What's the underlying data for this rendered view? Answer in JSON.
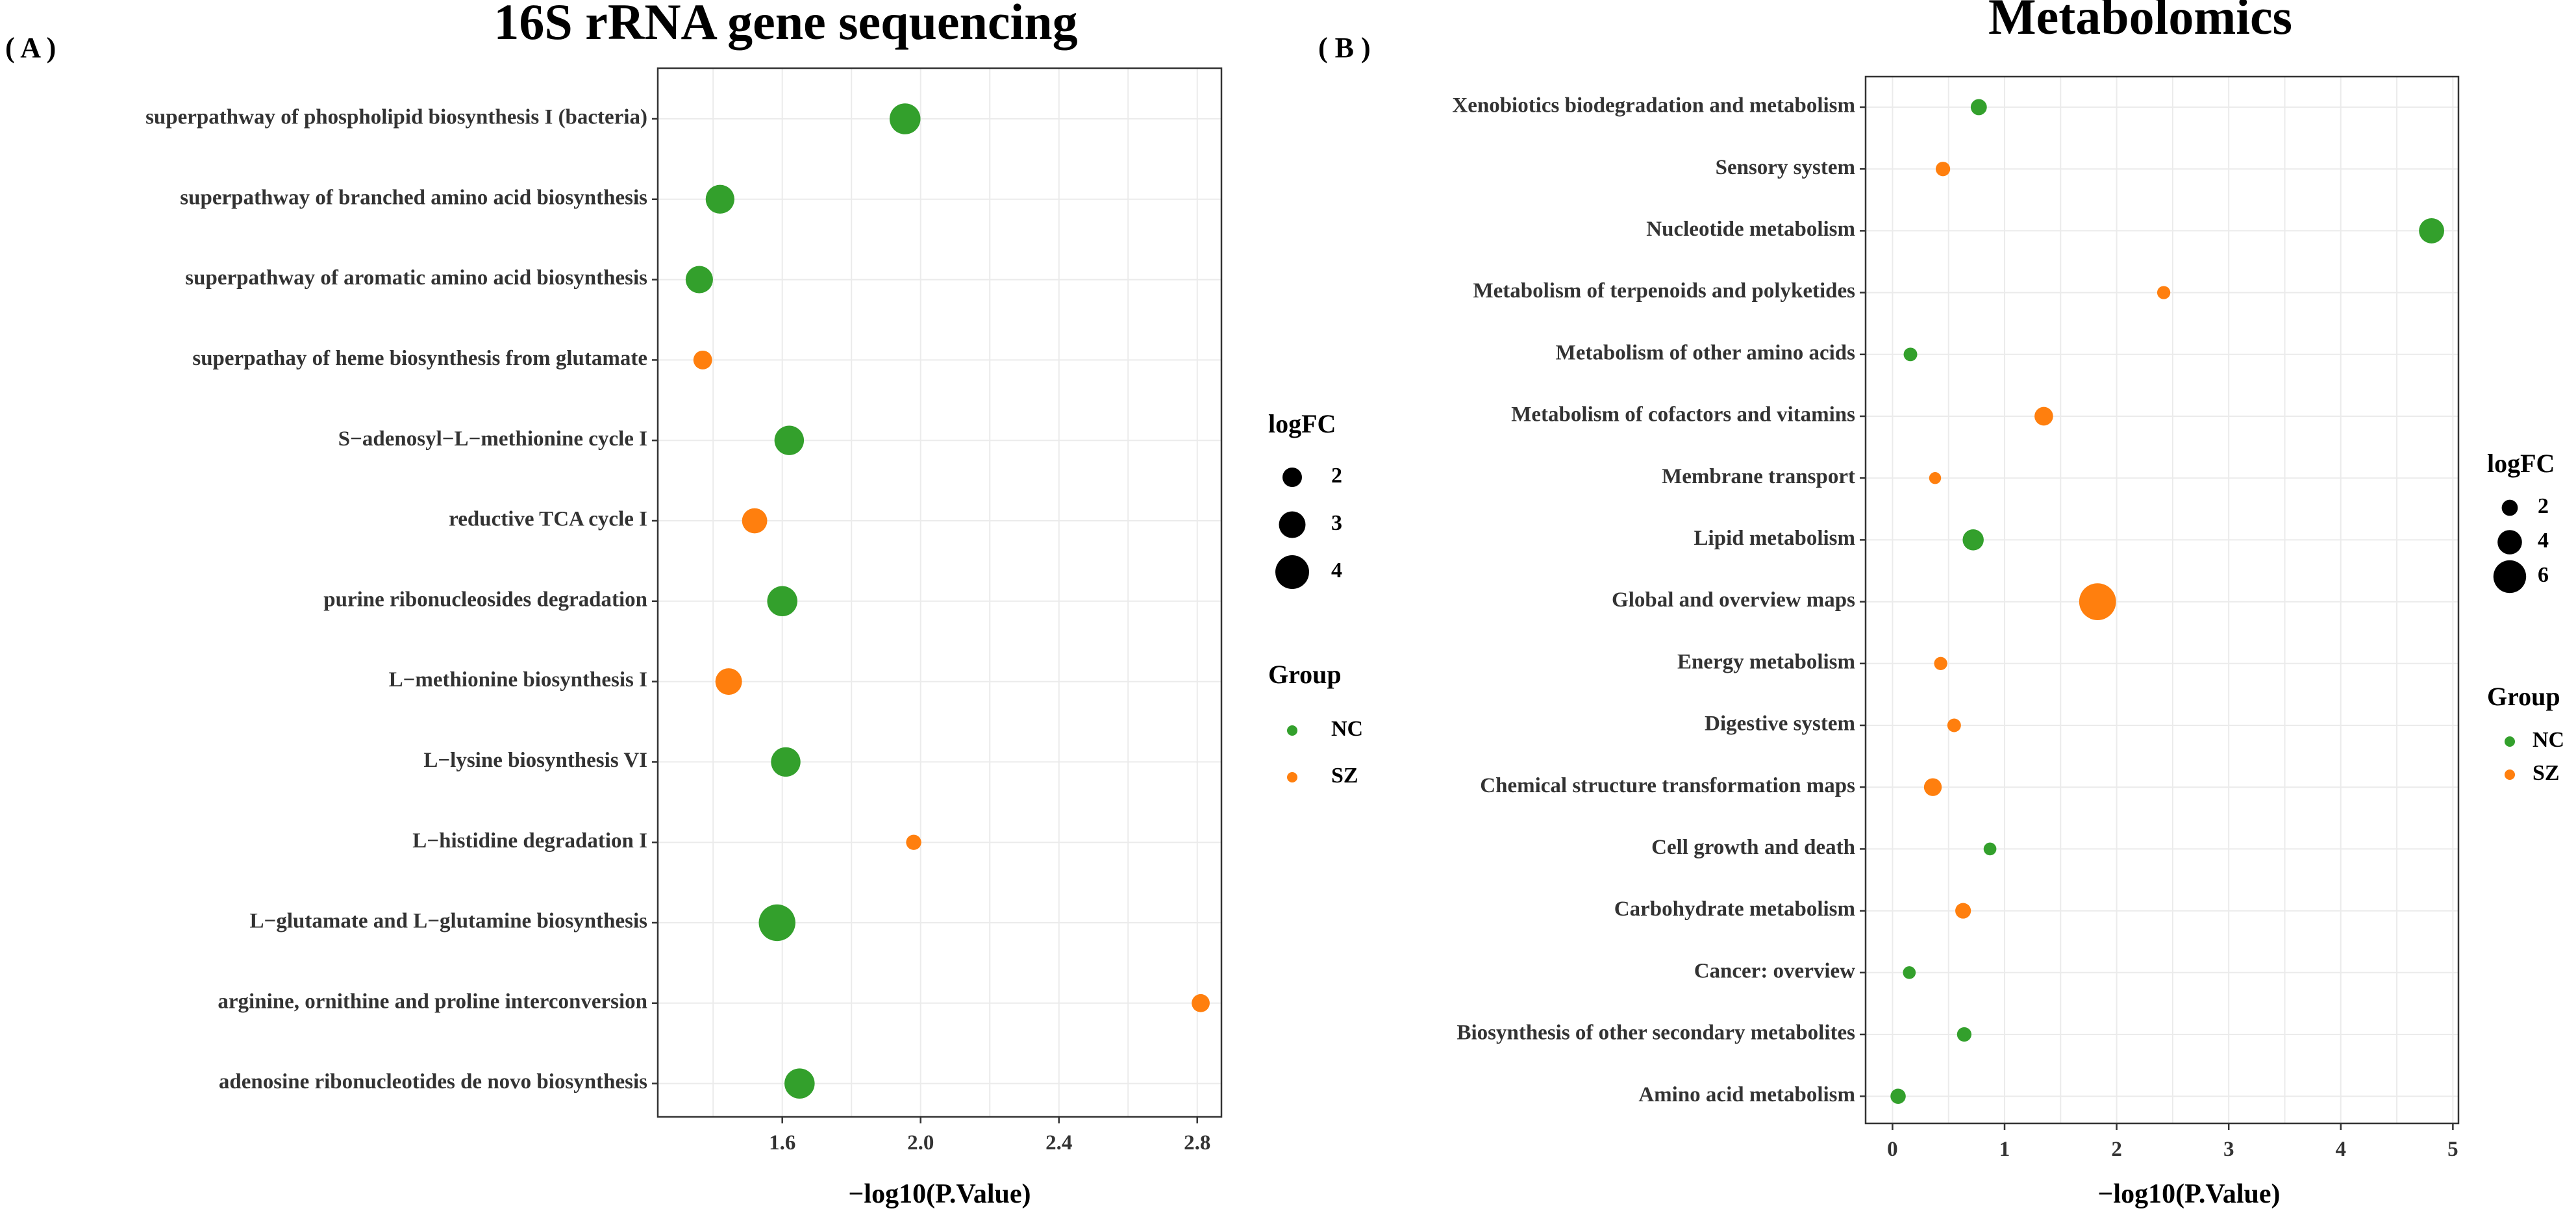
{
  "colors": {
    "NC": "#33a02c",
    "SZ": "#ff7f0e"
  },
  "chart_data": [
    {
      "panel_label": "( A )",
      "title": "16S rRNA gene sequencing",
      "type": "scatter",
      "xlabel": "−log10(P.Value)",
      "xlim": [
        1.24,
        2.87
      ],
      "xticks": [
        1.6,
        2.0,
        2.4,
        2.8
      ],
      "xtick_labels": [
        "1.6",
        "2.0",
        "2.4",
        "2.8"
      ],
      "points": [
        {
          "label": "superpathway of phospholipid biosynthesis I (bacteria)",
          "x": 1.955,
          "logFC": 3.6,
          "group": "NC"
        },
        {
          "label": "superpathway of branched amino acid biosynthesis",
          "x": 1.42,
          "logFC": 3.3,
          "group": "NC"
        },
        {
          "label": "superpathway of aromatic amino acid biosynthesis",
          "x": 1.36,
          "logFC": 3.1,
          "group": "NC"
        },
        {
          "label": "superpathay of heme biosynthesis from glutamate",
          "x": 1.37,
          "logFC": 1.9,
          "group": "SZ"
        },
        {
          "label": "S−adenosyl−L−methionine cycle I",
          "x": 1.62,
          "logFC": 3.4,
          "group": "NC"
        },
        {
          "label": "reductive TCA cycle I",
          "x": 1.52,
          "logFC": 2.8,
          "group": "SZ"
        },
        {
          "label": "purine ribonucleosides degradation",
          "x": 1.6,
          "logFC": 3.5,
          "group": "NC"
        },
        {
          "label": "L−methionine biosynthesis I",
          "x": 1.445,
          "logFC": 3.0,
          "group": "SZ"
        },
        {
          "label": "L−lysine biosynthesis VI",
          "x": 1.61,
          "logFC": 3.4,
          "group": "NC"
        },
        {
          "label": "L−histidine degradation I",
          "x": 1.98,
          "logFC": 1.4,
          "group": "SZ"
        },
        {
          "label": "L−glutamate and L−glutamine biosynthesis",
          "x": 1.585,
          "logFC": 4.4,
          "group": "NC"
        },
        {
          "label": "arginine, ornithine and proline interconversion",
          "x": 2.81,
          "logFC": 1.8,
          "group": "SZ"
        },
        {
          "label": "adenosine ribonucleotides de novo biosynthesis",
          "x": 1.65,
          "logFC": 3.5,
          "group": "NC"
        }
      ],
      "legend": {
        "size_title": "logFC",
        "sizes": [
          2,
          3,
          4
        ],
        "size_labels": [
          "2",
          "3",
          "4"
        ],
        "group_title": "Group",
        "groups": [
          "NC",
          "SZ"
        ]
      }
    },
    {
      "panel_label": "( B )",
      "title": "Metabolomics",
      "type": "scatter",
      "xlabel": "−log10(P.Value)",
      "xlim": [
        -0.24,
        5.05
      ],
      "xticks": [
        0,
        1,
        2,
        3,
        4,
        5
      ],
      "xtick_labels": [
        "0",
        "1",
        "2",
        "3",
        "4",
        "5"
      ],
      "points": [
        {
          "label": "Xenobiotics biodegradation and metabolism",
          "x": 0.77,
          "logFC": 2.0,
          "group": "NC"
        },
        {
          "label": "Sensory system",
          "x": 0.45,
          "logFC": 1.6,
          "group": "SZ"
        },
        {
          "label": "Nucleotide metabolism",
          "x": 4.81,
          "logFC": 4.2,
          "group": "NC"
        },
        {
          "label": "Metabolism of terpenoids and polyketides",
          "x": 2.42,
          "logFC": 1.3,
          "group": "SZ"
        },
        {
          "label": "Metabolism of other amino acids",
          "x": 0.16,
          "logFC": 1.4,
          "group": "NC"
        },
        {
          "label": "Metabolism of cofactors and vitamins",
          "x": 1.35,
          "logFC": 2.6,
          "group": "SZ"
        },
        {
          "label": "Membrane transport",
          "x": 0.38,
          "logFC": 1.0,
          "group": "SZ"
        },
        {
          "label": "Lipid metabolism",
          "x": 0.72,
          "logFC": 3.2,
          "group": "NC"
        },
        {
          "label": "Global and overview maps",
          "x": 1.83,
          "logFC": 7.0,
          "group": "SZ"
        },
        {
          "label": "Energy metabolism",
          "x": 0.43,
          "logFC": 1.3,
          "group": "SZ"
        },
        {
          "label": "Digestive system",
          "x": 0.55,
          "logFC": 1.4,
          "group": "SZ"
        },
        {
          "label": "Chemical structure transformation maps",
          "x": 0.36,
          "logFC": 2.4,
          "group": "SZ"
        },
        {
          "label": "Cell growth and death",
          "x": 0.87,
          "logFC": 1.2,
          "group": "NC"
        },
        {
          "label": "Carbohydrate metabolism",
          "x": 0.63,
          "logFC": 1.9,
          "group": "SZ"
        },
        {
          "label": "Cancer: overview",
          "x": 0.15,
          "logFC": 1.2,
          "group": "NC"
        },
        {
          "label": "Biosynthesis of other secondary metabolites",
          "x": 0.64,
          "logFC": 1.6,
          "group": "NC"
        },
        {
          "label": "Amino acid metabolism",
          "x": 0.05,
          "logFC": 1.8,
          "group": "NC"
        }
      ],
      "legend": {
        "size_title": "logFC",
        "sizes": [
          2,
          4,
          6
        ],
        "size_labels": [
          "2",
          "4",
          "6"
        ],
        "group_title": "Group",
        "groups": [
          "NC",
          "SZ"
        ]
      }
    }
  ]
}
